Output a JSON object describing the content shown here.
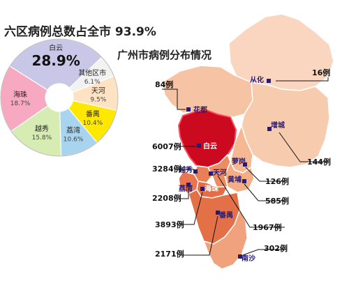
{
  "pie_title": "六区病例总数占全市 93.9%",
  "map_title": "广州市病例分布情况",
  "colors": {
    "baiyun": "#cc0a1f",
    "baiyun_edge": "#ff3a4c",
    "dark_orange": "#e9734a",
    "mid_orange": "#f0a07a",
    "light_orange": "#f8c8a8",
    "pale": "#fadbc8",
    "outline": "#ffffff",
    "marker": "#2a1a70",
    "leader": "#111111"
  },
  "chart_data": [
    {
      "type": "pie",
      "title": "六区病例总数占全市 93.9%",
      "slices": [
        {
          "name": "白云",
          "value": 28.9,
          "label": "28.9%",
          "color": "#c9c7e8"
        },
        {
          "name": "其他区市",
          "value": 6.1,
          "label": "6.1%",
          "color": "#f2f2f2"
        },
        {
          "name": "天河",
          "value": 9.5,
          "label": "9.5%",
          "color": "#fde3c4"
        },
        {
          "name": "番禺",
          "value": 10.4,
          "label": "10.4%",
          "color": "#ffe800"
        },
        {
          "name": "荔湾",
          "value": 10.6,
          "label": "10.6%",
          "color": "#a9d4f0"
        },
        {
          "name": "越秀",
          "value": 15.8,
          "label": "15.8%",
          "color": "#d7ecb2"
        },
        {
          "name": "海珠",
          "value": 18.7,
          "label": "18.7%",
          "color": "#f6a9c0"
        }
      ]
    },
    {
      "type": "map",
      "title": "广州市病例分布情况",
      "districts": [
        {
          "name": "花都",
          "cases": 84,
          "label": "84例"
        },
        {
          "name": "从化",
          "cases": 16,
          "label": "16例"
        },
        {
          "name": "增城",
          "cases": 144,
          "label": "144例"
        },
        {
          "name": "白云",
          "cases": 6007,
          "label": "6007例"
        },
        {
          "name": "萝岗",
          "cases": 126,
          "label": "126例"
        },
        {
          "name": "越秀",
          "cases": 3284,
          "label": "3284例"
        },
        {
          "name": "黄埔",
          "cases": 585,
          "label": "585例"
        },
        {
          "name": "荔湾",
          "cases": 2208,
          "label": "2208例"
        },
        {
          "name": "天河",
          "cases": 1967,
          "label": "1967例"
        },
        {
          "name": "海珠",
          "cases": 3893,
          "label": "3893例"
        },
        {
          "name": "番禺",
          "cases": 2171,
          "label": "2171例"
        },
        {
          "name": "南沙",
          "cases": 302,
          "label": "302例"
        }
      ]
    }
  ]
}
